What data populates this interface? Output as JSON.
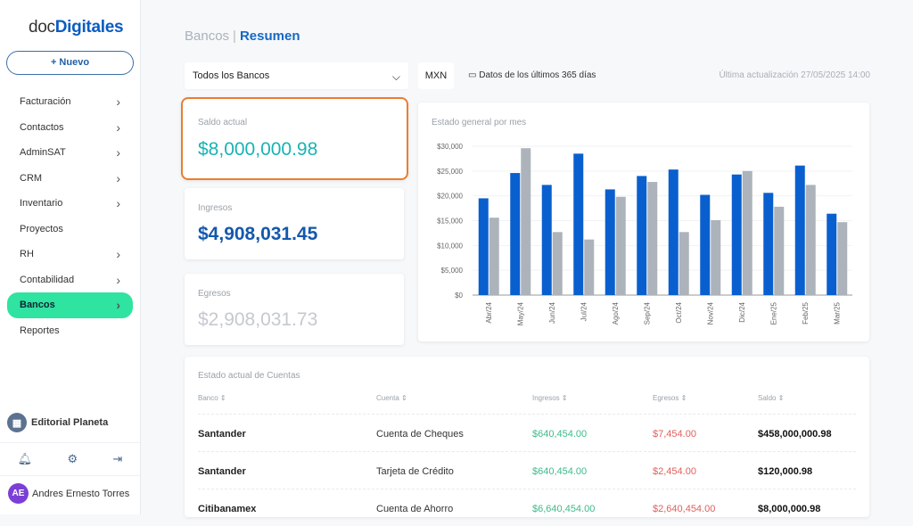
{
  "sidebar": {
    "logo_a": "doc",
    "logo_b": "Digitales",
    "new_button": "+ Nuevo",
    "items": [
      {
        "label": "Facturación",
        "chevron": true
      },
      {
        "label": "Contactos",
        "chevron": true
      },
      {
        "label": "AdminSAT",
        "chevron": true
      },
      {
        "label": "CRM",
        "chevron": true
      },
      {
        "label": "Inventario",
        "chevron": true
      },
      {
        "label": "Proyectos",
        "chevron": false
      },
      {
        "label": "RH",
        "chevron": true
      },
      {
        "label": "Contabilidad",
        "chevron": true
      },
      {
        "label": "Bancos",
        "chevron": true,
        "active": true
      },
      {
        "label": "Reportes",
        "chevron": false
      }
    ],
    "organization": "Editorial Planeta",
    "user_initials": "AE",
    "user_name": "Andres Ernesto Torres"
  },
  "header": {
    "section": "Bancos",
    "separator": "|",
    "page": "Resumen"
  },
  "filters": {
    "bank_select": "Todos los Bancos",
    "currency": "MXN",
    "range": "Datos de los últimos 365 días",
    "last_update": "Última actualización 27/05/2025 14:00"
  },
  "cards": {
    "saldo_label": "Saldo actual",
    "saldo_value": "$8,000,000.98",
    "ingresos_label": "Ingresos",
    "ingresos_value": "$4,908,031.45",
    "egresos_label": "Egresos",
    "egresos_value": "$2,908,031.73"
  },
  "colors": {
    "accent": "#1668c4",
    "active_nav": "#2fe3a0",
    "highlight": "#ec7d2e",
    "income": "#3dbb8a",
    "expense": "#e0605c",
    "series_blue": "#0a5fcf",
    "series_gray": "#adb3ba"
  },
  "chart_data": {
    "type": "bar",
    "title": "Estado general por mes",
    "categories": [
      "Abr/24",
      "May/24",
      "Jun/24",
      "Jul/24",
      "Ago/24",
      "Sep/24",
      "Oct/24",
      "Nov/24",
      "Dic/24",
      "Ene/25",
      "Feb/25",
      "Mar/25"
    ],
    "series": [
      {
        "values": [
          19500,
          24600,
          22200,
          28500,
          21300,
          24000,
          25300,
          20200,
          24300,
          20600,
          26100,
          16400
        ]
      },
      {
        "values": [
          15600,
          29600,
          12700,
          11200,
          19800,
          22800,
          12700,
          15100,
          25000,
          17800,
          22200,
          14700
        ]
      }
    ],
    "yticks": [
      "$0",
      "$5,000",
      "$10,000",
      "$15,000",
      "$20,000",
      "$25,000",
      "$30,000"
    ],
    "ylim": [
      0,
      30000
    ],
    "grid": true
  },
  "table": {
    "title": "Estado actual de Cuentas",
    "headers": [
      "Banco",
      "Cuenta",
      "Ingresos",
      "Egresos",
      "Saldo"
    ],
    "rows": [
      [
        "Santander",
        "Cuenta de Cheques",
        "$640,454.00",
        "$7,454.00",
        "$458,000,000.98"
      ],
      [
        "Santander",
        "Tarjeta de Crédito",
        "$640,454.00",
        "$2,454.00",
        "$120,000.98"
      ],
      [
        "Citibanamex",
        "Cuenta de Ahorro",
        "$6,640,454.00",
        "$2,640,454.00",
        "$8,000,000.98"
      ]
    ]
  }
}
